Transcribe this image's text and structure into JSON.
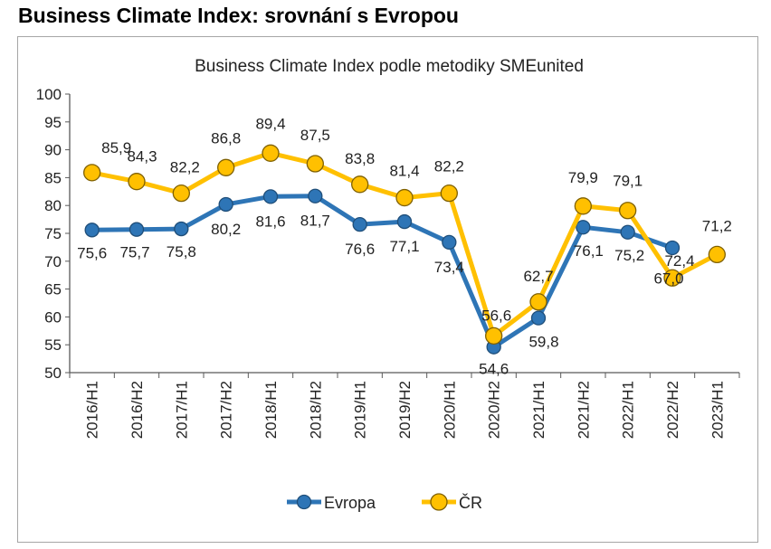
{
  "page_title": "Business Climate Index: srovnání s Evropou",
  "chart_data": {
    "type": "line",
    "title": "Business Climate Index podle metodiky SMEunited",
    "xlabel": "",
    "ylabel": "",
    "ylim": [
      50,
      100
    ],
    "ytick_step": 5,
    "grid": false,
    "legend_position": "bottom",
    "categories": [
      "2016/H1",
      "2016/H2",
      "2017/H1",
      "2017/H2",
      "2018/H1",
      "2018/H2",
      "2019/H1",
      "2019/H2",
      "2020/H1",
      "2020/H2",
      "2021/H1",
      "2021/H2",
      "2022/H1",
      "2022/H2",
      "2023/H1"
    ],
    "series": [
      {
        "name": "Evropa",
        "color": "#2e75b6",
        "values": [
          75.6,
          75.7,
          75.8,
          80.2,
          81.6,
          81.7,
          76.6,
          77.1,
          73.4,
          54.6,
          59.8,
          76.1,
          75.2,
          72.4,
          null
        ],
        "labels": [
          "75,6",
          "75,7",
          "75,8",
          "80,2",
          "81,6",
          "81,7",
          "76,6",
          "77,1",
          "73,4",
          "54,6",
          "59,8",
          "76,1",
          "75,2",
          "72,4",
          ""
        ]
      },
      {
        "name": "ČR",
        "color": "#ffc000",
        "values": [
          85.9,
          84.3,
          82.2,
          86.8,
          89.4,
          87.5,
          83.8,
          81.4,
          82.2,
          56.6,
          62.7,
          79.9,
          79.1,
          67.0,
          71.2
        ],
        "labels": [
          "85,9",
          "84,3",
          "82,2",
          "86,8",
          "89,4",
          "87,5",
          "83,8",
          "81,4",
          "82,2",
          "56,6",
          "62,7",
          "79,9",
          "79,1",
          "67,0",
          "71,2"
        ]
      }
    ]
  }
}
